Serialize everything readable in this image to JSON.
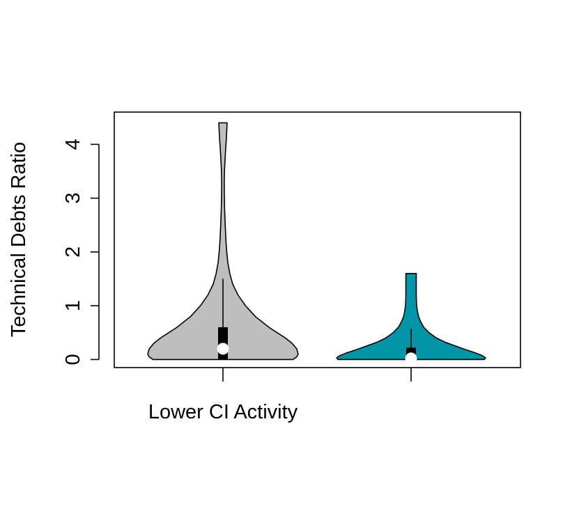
{
  "chart_data": {
    "type": "violin",
    "title": "",
    "xlabel": "",
    "ylabel": "Technical Debts Ratio",
    "ylim": [
      -0.15,
      4.6
    ],
    "yticks": [
      0,
      1,
      2,
      3,
      4
    ],
    "grid": false,
    "categories": [
      "Lower CI Activity",
      ""
    ],
    "series": [
      {
        "color": "#BEBEBE",
        "min": 0,
        "max": 4.4,
        "q1": 0,
        "median": 0.2,
        "q3": 0.6,
        "whisker_low": 0,
        "whisker_high": 1.5,
        "density_y": [
          0,
          0.05,
          0.1,
          0.2,
          0.3,
          0.4,
          0.5,
          0.6,
          0.8,
          1.0,
          1.2,
          1.4,
          1.6,
          1.8,
          2.0,
          2.2,
          2.5,
          2.8,
          3.1,
          3.3,
          3.5,
          3.7,
          3.9,
          4.1,
          4.3,
          4.4
        ],
        "density_w": [
          0.93,
          0.98,
          1.0,
          0.98,
          0.92,
          0.83,
          0.72,
          0.61,
          0.43,
          0.3,
          0.2,
          0.13,
          0.09,
          0.065,
          0.05,
          0.04,
          0.03,
          0.022,
          0.018,
          0.017,
          0.02,
          0.027,
          0.035,
          0.045,
          0.052,
          0.055
        ]
      },
      {
        "color": "#0096A8",
        "min": 0,
        "max": 1.6,
        "q1": 0,
        "median": 0.02,
        "q3": 0.22,
        "whisker_low": 0,
        "whisker_high": 0.57,
        "density_y": [
          0,
          0.03,
          0.07,
          0.12,
          0.18,
          0.25,
          0.32,
          0.4,
          0.5,
          0.6,
          0.7,
          0.8,
          0.9,
          1.0,
          1.1,
          1.2,
          1.3,
          1.4,
          1.5,
          1.6
        ],
        "density_w": [
          0.98,
          1.0,
          0.96,
          0.87,
          0.74,
          0.6,
          0.46,
          0.34,
          0.24,
          0.17,
          0.13,
          0.1,
          0.085,
          0.075,
          0.072,
          0.07,
          0.07,
          0.07,
          0.07,
          0.07
        ]
      }
    ]
  }
}
